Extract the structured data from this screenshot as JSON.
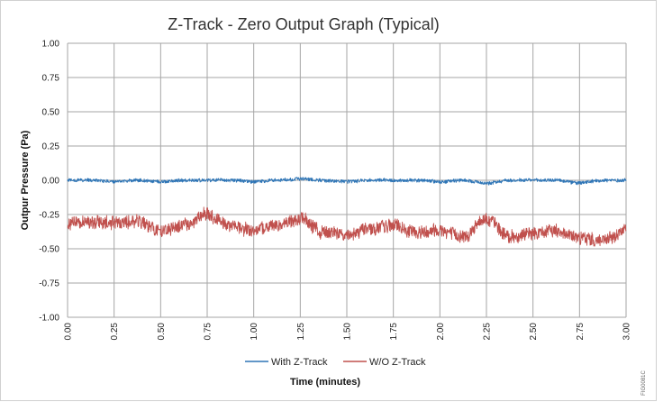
{
  "chart_data": {
    "type": "line",
    "title": "Z-Track - Zero Output Graph (Typical)",
    "xlabel": "Time (minutes)",
    "ylabel": "Outpur Pressure (Pa)",
    "xlim": [
      0,
      3
    ],
    "ylim": [
      -1,
      1
    ],
    "xticks": [
      "0.00",
      "0.25",
      "0.50",
      "0.75",
      "1.00",
      "1.25",
      "1.50",
      "1.75",
      "2.00",
      "2.25",
      "2.50",
      "2.75",
      "3.00"
    ],
    "yticks": [
      "1.00",
      "0.75",
      "0.50",
      "0.25",
      "0.00",
      "-0.25",
      "-0.50",
      "-0.75",
      "-1.00"
    ],
    "grid": true,
    "legend_position": "bottom",
    "series": [
      {
        "name": "With Z-Track",
        "color": "#2e75b6",
        "x": [
          0,
          0.125,
          0.25,
          0.375,
          0.5,
          0.625,
          0.75,
          0.875,
          1.0,
          1.125,
          1.25,
          1.375,
          1.5,
          1.625,
          1.75,
          1.875,
          2.0,
          2.125,
          2.25,
          2.375,
          2.5,
          2.625,
          2.75,
          2.875,
          3.0
        ],
        "y": [
          0.0,
          0.0,
          -0.01,
          0.0,
          -0.01,
          0.0,
          0.0,
          0.0,
          -0.01,
          0.0,
          0.01,
          0.0,
          -0.01,
          0.0,
          0.0,
          0.0,
          -0.01,
          0.0,
          -0.02,
          0.0,
          0.0,
          0.0,
          -0.02,
          0.0,
          0.0
        ]
      },
      {
        "name": "W/O Z-Track",
        "color": "#c0504d",
        "x": [
          0,
          0.125,
          0.25,
          0.375,
          0.5,
          0.625,
          0.75,
          0.875,
          1.0,
          1.125,
          1.25,
          1.375,
          1.5,
          1.625,
          1.75,
          1.875,
          2.0,
          2.125,
          2.25,
          2.375,
          2.5,
          2.625,
          2.75,
          2.875,
          3.0
        ],
        "y": [
          -0.32,
          -0.3,
          -0.31,
          -0.3,
          -0.37,
          -0.33,
          -0.25,
          -0.33,
          -0.37,
          -0.33,
          -0.28,
          -0.38,
          -0.4,
          -0.35,
          -0.33,
          -0.38,
          -0.36,
          -0.41,
          -0.28,
          -0.41,
          -0.39,
          -0.37,
          -0.42,
          -0.44,
          -0.37
        ]
      }
    ]
  },
  "figure_id": "FIG0081C"
}
